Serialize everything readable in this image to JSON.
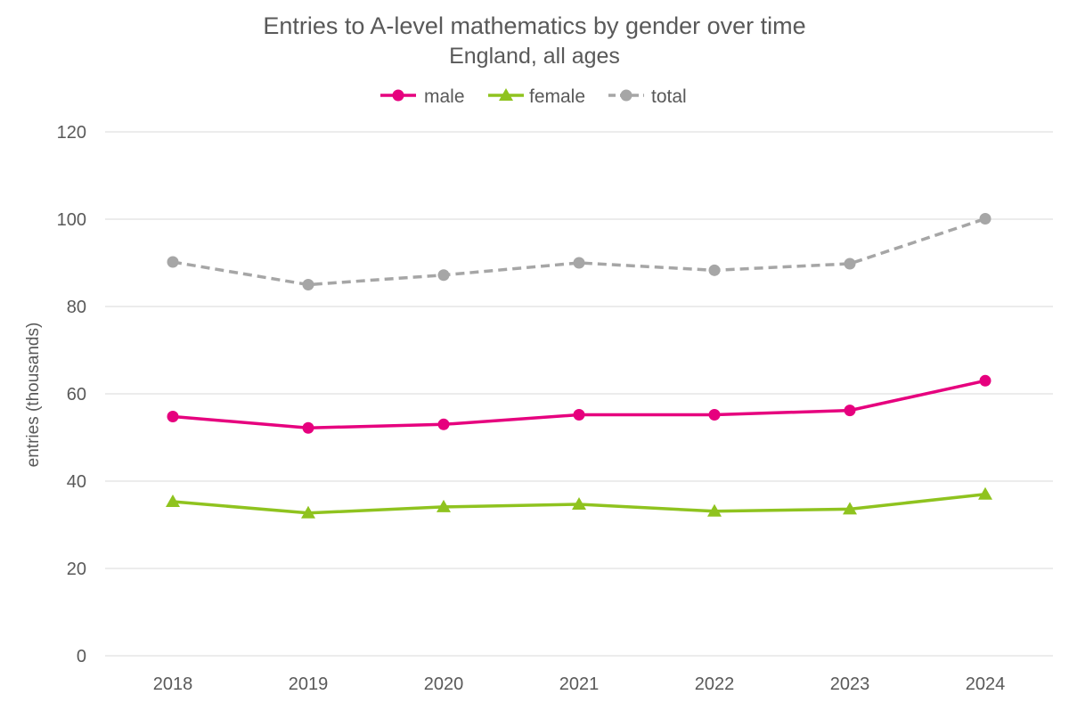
{
  "chart_data": {
    "type": "line",
    "title": "Entries to A-level mathematics by gender over time",
    "subtitle": "England, all ages",
    "xlabel": "",
    "ylabel": "entries (thousands)",
    "ylim": [
      0,
      120
    ],
    "yticks": [
      0,
      20,
      40,
      60,
      80,
      100,
      120
    ],
    "grid": true,
    "legend_position": "top",
    "categories": [
      "2018",
      "2019",
      "2020",
      "2021",
      "2022",
      "2023",
      "2024"
    ],
    "series": [
      {
        "name": "male",
        "values": [
          54.8,
          52.2,
          53.0,
          55.2,
          55.2,
          56.2,
          63.0
        ],
        "color": "#e6007e",
        "marker": "circle",
        "dash": "solid"
      },
      {
        "name": "female",
        "values": [
          35.3,
          32.7,
          34.1,
          34.7,
          33.1,
          33.6,
          37.0
        ],
        "color": "#8fc31f",
        "marker": "triangle",
        "dash": "solid"
      },
      {
        "name": "total",
        "values": [
          90.2,
          85.0,
          87.2,
          90.0,
          88.3,
          89.8,
          100.1
        ],
        "color": "#a6a6a6",
        "marker": "circle",
        "dash": "dashed"
      }
    ]
  }
}
